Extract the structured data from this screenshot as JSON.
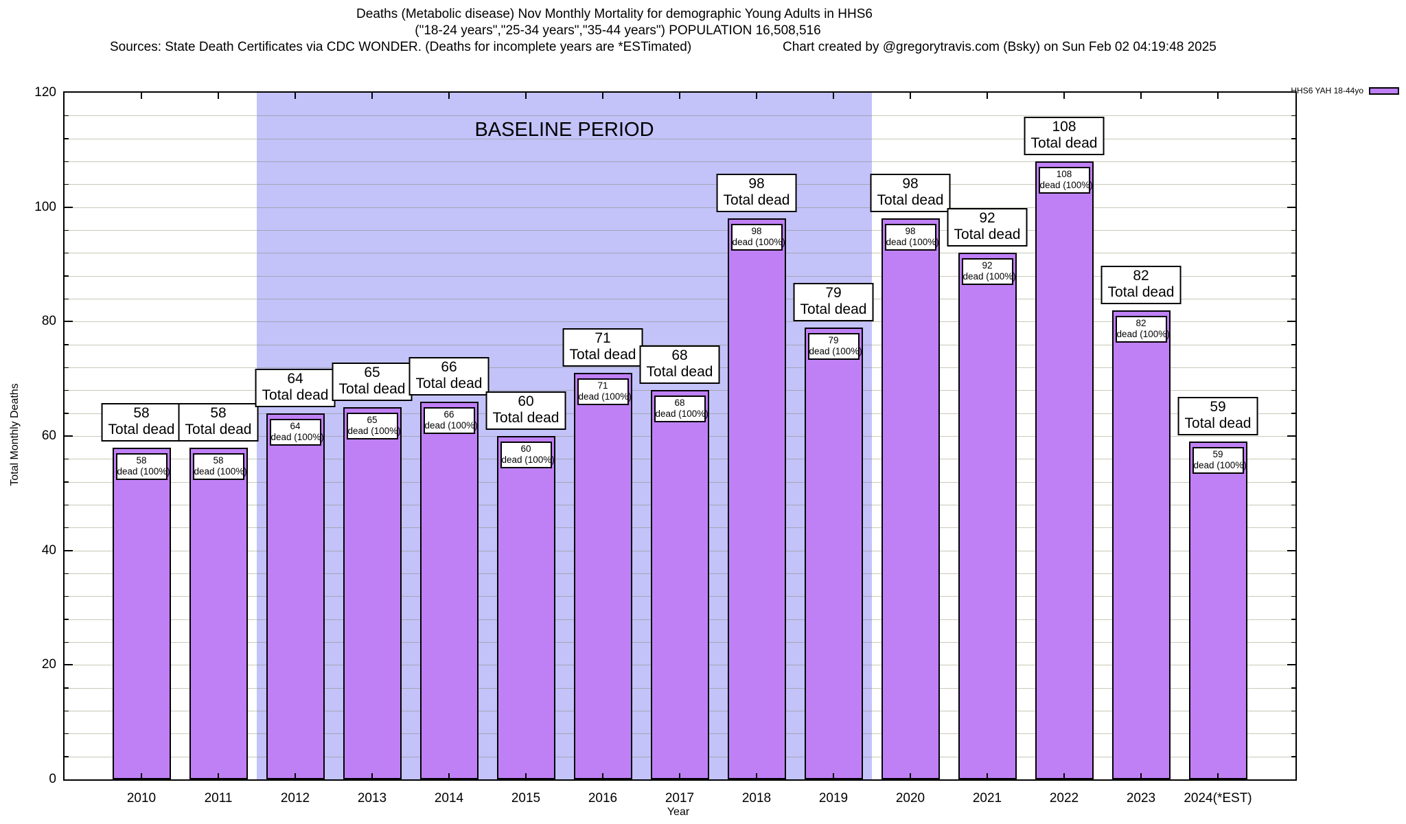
{
  "header": {
    "title_line1": "Deaths (Metabolic disease) Nov Monthly Mortality for demographic Young Adults in HHS6",
    "title_line2": "(\"18-24 years\",\"25-34 years\",\"35-44 years\") POPULATION 16,508,516",
    "sources": "Sources: State Death Certificates via CDC WONDER. (Deaths for incomplete years are *ESTimated)",
    "credit": "Chart created by @gregorytravis.com (Bsky) on Sun Feb 02 04:19:48 2025"
  },
  "legend": {
    "label": "HHS6 YAH 18-44yo",
    "swatch_color": "#bf80f5"
  },
  "colors": {
    "bar": "#bf80f5",
    "band": "#c3c3fa",
    "grid": "rgba(125,125,80,0.42)",
    "frame": "#000000",
    "box_bg": "#ffffff"
  },
  "chart_data": {
    "type": "bar",
    "title": "Deaths (Metabolic disease) Nov Monthly Mortality for demographic Young Adults in HHS6",
    "subtitle": "(\"18-24 years\",\"25-34 years\",\"35-44 years\") POPULATION 16,508,516",
    "categories": [
      "2010",
      "2011",
      "2012",
      "2013",
      "2014",
      "2015",
      "2016",
      "2017",
      "2018",
      "2019",
      "2020",
      "2021",
      "2022",
      "2023",
      "2024(*EST)"
    ],
    "values": [
      58,
      58,
      64,
      65,
      66,
      60,
      71,
      68,
      98,
      79,
      98,
      92,
      108,
      82,
      59
    ],
    "bar_top_label_line2": "Total dead",
    "bar_inner_label_line2": "dead (100%)",
    "xlabel": "Year",
    "ylabel": "Total Monthly Deaths",
    "ylim": [
      0,
      120
    ],
    "y_major_ticks": [
      0,
      20,
      40,
      60,
      80,
      100,
      120
    ],
    "y_minor_grid_step": 4,
    "grid": true,
    "legend_entries": [
      {
        "name": "HHS6 YAH 18-44yo",
        "color": "#bf80f5"
      }
    ],
    "legend_position": "top-right-outside",
    "baseline_band": {
      "label": "BASELINE PERIOD",
      "start_category": "2012",
      "end_category": "2019",
      "color": "#c3c3fa"
    }
  }
}
